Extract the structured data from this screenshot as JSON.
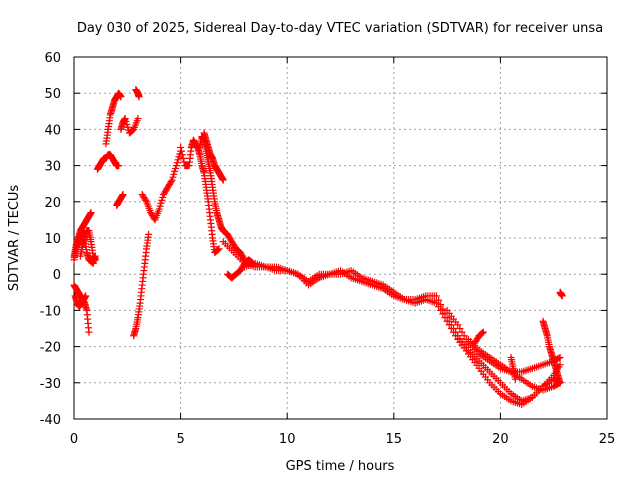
{
  "chart_data": {
    "type": "scatter",
    "title": "Day 030 of 2025, Sidereal Day-to-day VTEC variation (SDTVAR) for receiver unsa",
    "xlabel": "GPS time / hours",
    "ylabel": "SDTVAR / TECUs",
    "xlim": [
      0,
      25
    ],
    "ylim": [
      -40,
      60
    ],
    "xticks": [
      0,
      5,
      10,
      15,
      20,
      25
    ],
    "yticks": [
      -40,
      -30,
      -20,
      -10,
      0,
      10,
      20,
      30,
      40,
      50,
      60
    ],
    "marker": "plus",
    "color": "#ff0000",
    "grid": true,
    "segments": [
      {
        "name": "early-upper",
        "x": [
          0.0,
          0.1,
          0.2,
          0.3,
          0.4,
          0.5,
          0.6,
          0.7,
          0.8
        ],
        "y": [
          5,
          8,
          10,
          12,
          13,
          14,
          15,
          16,
          17
        ]
      },
      {
        "name": "early-mid-a",
        "x": [
          0.3,
          0.4,
          0.5,
          0.6,
          0.7,
          0.8,
          0.9,
          1.0
        ],
        "y": [
          5,
          8,
          10,
          12,
          12,
          9,
          5,
          4
        ]
      },
      {
        "name": "early-mid-b",
        "x": [
          0.0,
          0.1,
          0.2,
          0.3,
          0.4,
          0.5,
          0.6,
          0.7,
          0.9,
          1.0
        ],
        "y": [
          4,
          7,
          9,
          11,
          12,
          10,
          6,
          4,
          3,
          5
        ]
      },
      {
        "name": "early-lower-a",
        "x": [
          0.0,
          0.1,
          0.2,
          0.3,
          0.4,
          0.5,
          0.6,
          0.7
        ],
        "y": [
          -3,
          -4,
          -5,
          -6,
          -7,
          -8,
          -10,
          -16
        ]
      },
      {
        "name": "early-lower-b",
        "x": [
          0.05,
          0.15,
          0.25,
          0.35,
          0.45,
          0.55
        ],
        "y": [
          -6,
          -8,
          -9,
          -8,
          -7,
          -6
        ]
      },
      {
        "name": "spike-1-left",
        "x": [
          1.1,
          1.2,
          1.3,
          1.4,
          1.5,
          1.6,
          1.7,
          1.8,
          1.9,
          2.0,
          2.1
        ],
        "y": [
          29,
          30,
          31,
          32,
          32,
          33,
          33,
          32,
          31,
          30,
          30
        ]
      },
      {
        "name": "spike-1-top",
        "x": [
          1.5,
          1.6,
          1.7,
          1.8,
          1.9,
          2.0,
          2.1,
          2.2
        ],
        "y": [
          36,
          40,
          44,
          46,
          48,
          49,
          50,
          49
        ]
      },
      {
        "name": "spike-1-low",
        "x": [
          2.0,
          2.1,
          2.2,
          2.3
        ],
        "y": [
          19,
          20,
          21,
          22
        ]
      },
      {
        "name": "spike-2-mid",
        "x": [
          2.2,
          2.3,
          2.4,
          2.6,
          2.8,
          3.0
        ],
        "y": [
          40,
          42,
          43,
          39,
          40,
          43
        ]
      },
      {
        "name": "spike-2-top",
        "x": [
          2.9,
          3.0,
          3.05
        ],
        "y": [
          51,
          50,
          49
        ]
      },
      {
        "name": "dip-rise",
        "x": [
          2.8,
          2.9,
          3.0,
          3.1,
          3.2,
          3.3,
          3.4,
          3.5
        ],
        "y": [
          -17,
          -15,
          -12,
          -8,
          -3,
          2,
          7,
          11
        ]
      },
      {
        "name": "hump",
        "x": [
          3.2,
          3.4,
          3.6,
          3.8,
          4.0,
          4.2,
          4.4,
          4.6,
          4.8,
          5.0
        ],
        "y": [
          22,
          20,
          17,
          15,
          18,
          22,
          24,
          26,
          30,
          34
        ]
      },
      {
        "name": "peak-1",
        "x": [
          5.0,
          5.2,
          5.4,
          5.5,
          5.6,
          5.7,
          5.8,
          5.9,
          6.0,
          6.1,
          6.2,
          6.3,
          6.4,
          6.5,
          6.6,
          6.8
        ],
        "y": [
          35,
          30,
          30,
          35,
          37,
          36,
          35,
          33,
          30,
          28,
          24,
          20,
          15,
          10,
          6,
          7
        ]
      },
      {
        "name": "peak-2",
        "x": [
          5.9,
          6.0,
          6.1,
          6.2,
          6.3,
          6.4,
          6.5,
          6.6,
          6.7,
          6.8,
          6.9,
          7.0,
          7.2,
          7.4,
          7.6,
          7.8,
          8.0
        ],
        "y": [
          35,
          38,
          37,
          34,
          31,
          28,
          24,
          20,
          17,
          15,
          13,
          12,
          11,
          9,
          7,
          6,
          4
        ]
      },
      {
        "name": "peak-3",
        "x": [
          6.1,
          6.2,
          6.3,
          6.4,
          6.5,
          6.6,
          6.7,
          6.8,
          6.9,
          7.0
        ],
        "y": [
          39,
          37,
          35,
          33,
          32,
          30,
          29,
          28,
          27,
          26
        ]
      },
      {
        "name": "mid-low",
        "x": [
          7.2,
          7.4,
          7.6,
          7.8,
          8.0,
          8.2,
          8.4
        ],
        "y": [
          0,
          -1,
          0,
          1,
          3,
          4,
          3
        ]
      },
      {
        "name": "plateau-a",
        "x": [
          7.0,
          7.5,
          8.0,
          8.5,
          9.0,
          9.5,
          10.0,
          10.5,
          11.0,
          11.5,
          12.0,
          12.5,
          13.0,
          13.5,
          14.0,
          14.5,
          15.0,
          15.5,
          16.0,
          16.5,
          17.0,
          17.5,
          18.0,
          18.5,
          19.0,
          19.5,
          20.0,
          20.5,
          21.0,
          21.5,
          22.0,
          22.5,
          22.8
        ],
        "y": [
          9,
          6,
          3,
          2,
          2,
          1,
          1,
          0,
          -3,
          -1,
          0,
          0,
          1,
          -1,
          -2,
          -3,
          -5,
          -7,
          -7,
          -6,
          -6,
          -12,
          -17,
          -21,
          -24,
          -27,
          -30,
          -33,
          -35,
          -34,
          -31,
          -28,
          -25
        ]
      },
      {
        "name": "plateau-b",
        "x": [
          8.0,
          8.5,
          9.0,
          9.5,
          10.0,
          10.5,
          11.0,
          11.5,
          12.0,
          12.5,
          13.0,
          13.5,
          14.0,
          14.5,
          15.0,
          15.5,
          16.0,
          16.5,
          17.0,
          17.5,
          18.0,
          18.5,
          19.0,
          19.5,
          20.0,
          20.5,
          21.0,
          21.5,
          22.0,
          22.5,
          22.8
        ],
        "y": [
          2,
          3,
          2,
          2,
          1,
          0,
          -2,
          0,
          0,
          1,
          -1,
          -2,
          -3,
          -4,
          -6,
          -7,
          -8,
          -7,
          -8,
          -13,
          -18,
          -22,
          -26,
          -30,
          -33,
          -35,
          -36,
          -34,
          -31,
          -29,
          -30
        ]
      },
      {
        "name": "late-branch-a",
        "x": [
          17.5,
          18.0,
          18.5,
          19.0,
          19.5,
          20.0,
          20.5,
          21.0,
          21.5,
          22.0,
          22.5,
          22.8
        ],
        "y": [
          -10,
          -14,
          -19,
          -22,
          -24,
          -26,
          -27,
          -27,
          -26,
          -25,
          -24,
          -23
        ]
      },
      {
        "name": "late-branch-b",
        "x": [
          18.5,
          19.0,
          19.5,
          20.0,
          20.5,
          21.0,
          21.5,
          22.0,
          22.5,
          22.8
        ],
        "y": [
          -18,
          -21,
          -23,
          -25,
          -27,
          -29,
          -31,
          -32,
          -31,
          -30
        ]
      },
      {
        "name": "late-branch-c",
        "x": [
          18.8,
          19.0,
          19.2
        ],
        "y": [
          -19,
          -17,
          -16
        ]
      },
      {
        "name": "late-rise",
        "x": [
          22.0,
          22.1,
          22.2,
          22.3,
          22.4,
          22.5,
          22.6,
          22.7,
          22.8
        ],
        "y": [
          -13,
          -15,
          -17,
          -20,
          -22,
          -24,
          -26,
          -28,
          -30
        ]
      },
      {
        "name": "end-cluster",
        "x": [
          22.8,
          22.85,
          22.9
        ],
        "y": [
          -5,
          -5.5,
          -6
        ]
      },
      {
        "name": "late-spike",
        "x": [
          20.5,
          20.6,
          20.7
        ],
        "y": [
          -23,
          -26,
          -29
        ]
      }
    ]
  }
}
